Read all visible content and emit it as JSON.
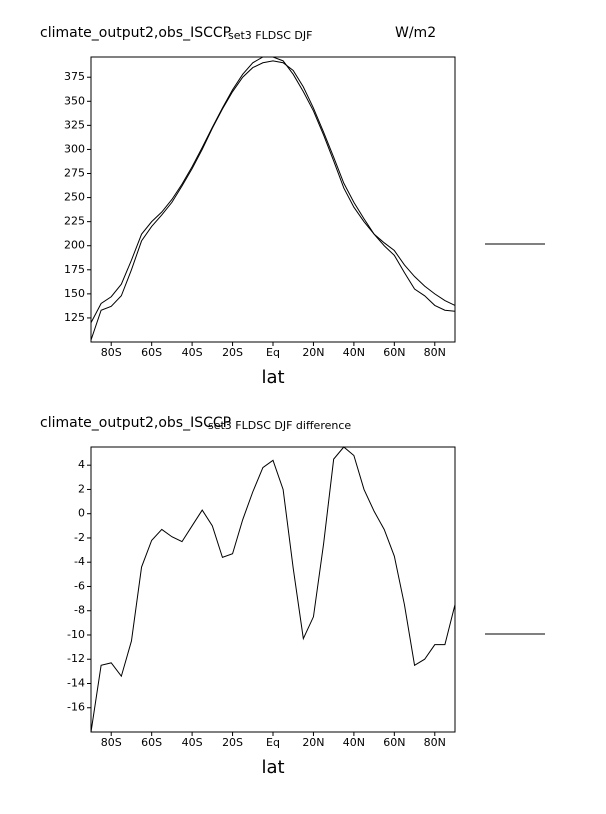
{
  "chart_data": [
    {
      "type": "line",
      "title": "climate_output2,obs_ISCCP",
      "subtitle": "set3 FLDSC DJF",
      "annotation": "W/m2",
      "x_label": "lat",
      "x": [
        -90,
        -85,
        -80,
        -75,
        -70,
        -65,
        -60,
        -55,
        -50,
        -45,
        -40,
        -35,
        -30,
        -25,
        -20,
        -15,
        -10,
        -5,
        0,
        5,
        10,
        15,
        20,
        25,
        30,
        35,
        40,
        45,
        50,
        55,
        60,
        65,
        70,
        75,
        80,
        85,
        90
      ],
      "series": [
        {
          "color": "#000000",
          "values": [
            102,
            133,
            137,
            148,
            175,
            205,
            220,
            232,
            245,
            262,
            280,
            300,
            322,
            342,
            360,
            375,
            385,
            390,
            392,
            390,
            382,
            365,
            343,
            318,
            292,
            265,
            245,
            228,
            212,
            200,
            190,
            172,
            155,
            148,
            138,
            133,
            132
          ]
        },
        {
          "color": "#000000",
          "values": [
            120,
            140,
            147,
            160,
            185,
            212,
            225,
            235,
            248,
            264,
            282,
            302,
            323,
            343,
            362,
            378,
            390,
            396,
            396,
            392,
            378,
            360,
            340,
            315,
            288,
            260,
            240,
            225,
            212,
            203,
            195,
            180,
            168,
            158,
            150,
            143,
            138
          ]
        }
      ],
      "xlim": [
        -90,
        90
      ],
      "ylim": [
        100,
        396
      ],
      "xticks": [
        {
          "value": -80,
          "label": "80S"
        },
        {
          "value": -60,
          "label": "60S"
        },
        {
          "value": -40,
          "label": "40S"
        },
        {
          "value": -20,
          "label": "20S"
        },
        {
          "value": 0,
          "label": "Eq"
        },
        {
          "value": 20,
          "label": "20N"
        },
        {
          "value": 40,
          "label": "40N"
        },
        {
          "value": 60,
          "label": "60N"
        },
        {
          "value": 80,
          "label": "80N"
        }
      ],
      "yticks": [
        125,
        150,
        175,
        200,
        225,
        250,
        275,
        300,
        325,
        350,
        375
      ],
      "grid": false
    },
    {
      "type": "line",
      "title": "climate_output2,obs_ISCCP",
      "subtitle": "set3 FLDSC DJF difference",
      "x_label": "lat",
      "x": [
        -90,
        -85,
        -80,
        -75,
        -70,
        -65,
        -60,
        -55,
        -50,
        -45,
        -40,
        -35,
        -30,
        -25,
        -20,
        -15,
        -10,
        -5,
        0,
        5,
        10,
        15,
        20,
        25,
        30,
        35,
        40,
        45,
        50,
        55,
        60,
        65,
        70,
        75,
        80,
        85,
        90
      ],
      "series": [
        {
          "color": "#000000",
          "values": [
            -18,
            -12.5,
            -12.3,
            -13.4,
            -10.5,
            -4.4,
            -2.2,
            -1.3,
            -1.9,
            -2.3,
            -1.0,
            0.3,
            -1.0,
            -3.6,
            -3.3,
            -0.5,
            1.8,
            3.8,
            4.4,
            2.0,
            -4.5,
            -10.3,
            -8.5,
            -2.5,
            4.5,
            5.5,
            4.8,
            2.0,
            0.2,
            -1.3,
            -3.5,
            -7.5,
            -12.5,
            -12.0,
            -10.8,
            -10.8,
            -7.5
          ]
        }
      ],
      "xlim": [
        -90,
        90
      ],
      "ylim": [
        -18,
        5.5
      ],
      "xticks": [
        {
          "value": -80,
          "label": "80S"
        },
        {
          "value": -60,
          "label": "60S"
        },
        {
          "value": -40,
          "label": "40S"
        },
        {
          "value": -20,
          "label": "20S"
        },
        {
          "value": 0,
          "label": "Eq"
        },
        {
          "value": 20,
          "label": "20N"
        },
        {
          "value": 40,
          "label": "40N"
        },
        {
          "value": 60,
          "label": "60N"
        },
        {
          "value": 80,
          "label": "80N"
        }
      ],
      "yticks": [
        -16,
        -14,
        -12,
        -10,
        -8,
        -6,
        -4,
        -2,
        0,
        2,
        4
      ],
      "grid": false
    }
  ]
}
